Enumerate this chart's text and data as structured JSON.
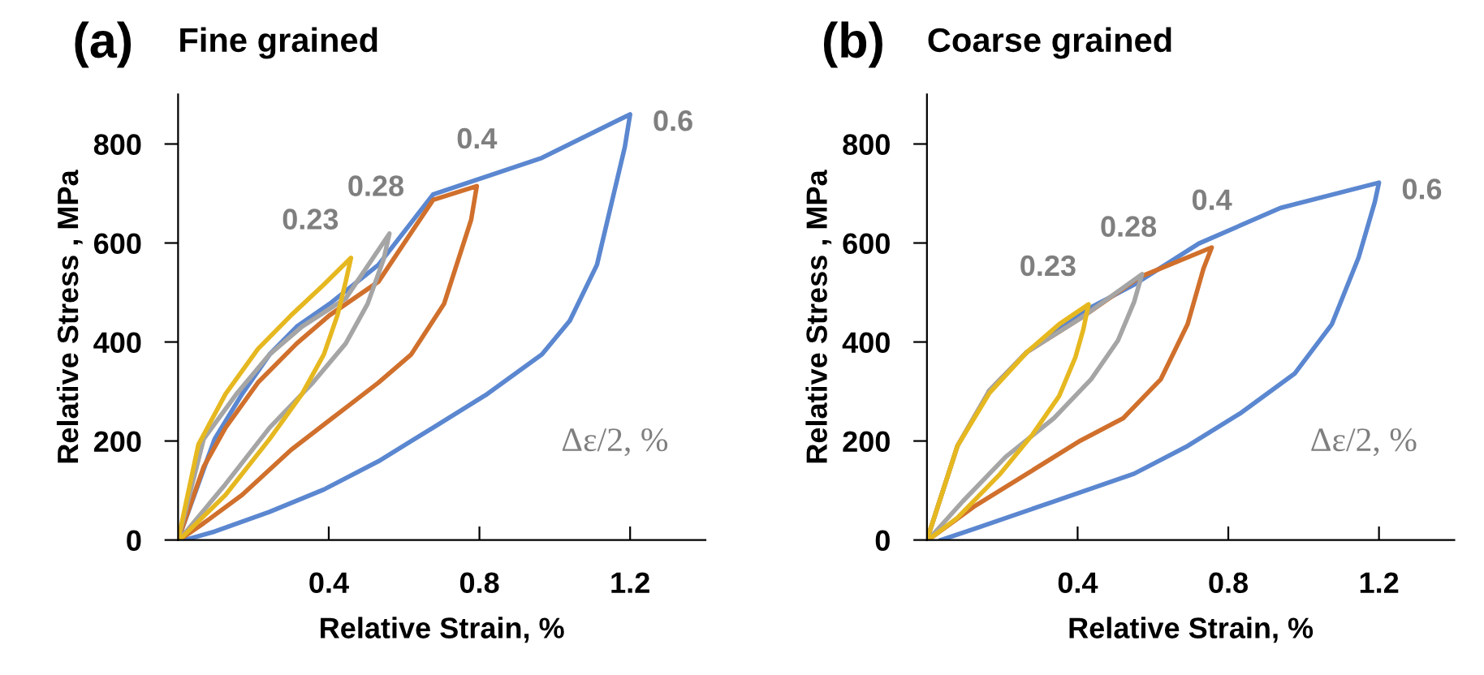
{
  "chart_data": [
    {
      "type": "line",
      "title": "(a)",
      "subtitle": "Fine grained",
      "xlabel": "Relative Strain, %",
      "ylabel": "Relative Stress , MPa",
      "xlim": [
        0,
        1.4
      ],
      "ylim": [
        0,
        900
      ],
      "xticks": [
        0.4,
        0.8,
        1.2
      ],
      "yticks": [
        0,
        200,
        400,
        600,
        800
      ],
      "grid": false,
      "legend": false,
      "marker": "none",
      "line_style": "solid",
      "annotations": [
        "Δε/2, %"
      ],
      "series": [
        {
          "name": "0.6",
          "color": "#5b87d0",
          "x": [
            0,
            0.097,
            0.17,
            0.243,
            0.315,
            0.402,
            0.532,
            0.677,
            0.966,
            1.2,
            1.186,
            1.112,
            1.04,
            0.966,
            0.821,
            0.677,
            0.532,
            0.387,
            0.243,
            0.097,
            0.017
          ],
          "values": [
            0,
            204,
            295,
            375,
            431,
            477,
            556,
            698,
            772,
            860,
            794,
            556,
            443,
            375,
            295,
            227,
            159,
            102,
            57,
            17,
            0
          ]
        },
        {
          "name": "0.4",
          "color": "#d0702c",
          "x": [
            0,
            0.068,
            0.126,
            0.212,
            0.315,
            0.402,
            0.532,
            0.677,
            0.793,
            0.778,
            0.706,
            0.619,
            0.532,
            0.416,
            0.3,
            0.17,
            0.068,
            0.003
          ],
          "values": [
            0,
            148,
            227,
            318,
            397,
            454,
            522,
            687,
            715,
            647,
            477,
            375,
            318,
            250,
            182,
            91,
            34,
            0
          ]
        },
        {
          "name": "0.28",
          "color": "#a5a5a5",
          "x": [
            0,
            0.068,
            0.155,
            0.243,
            0.329,
            0.445,
            0.561,
            0.546,
            0.503,
            0.445,
            0.358,
            0.243,
            0.126,
            0.003
          ],
          "values": [
            0,
            204,
            295,
            375,
            431,
            488,
            619,
            568,
            477,
            397,
            318,
            227,
            113,
            0
          ]
        },
        {
          "name": "0.23",
          "color": "#e6b820",
          "x": [
            0,
            0.054,
            0.126,
            0.212,
            0.3,
            0.387,
            0.459,
            0.445,
            0.423,
            0.387,
            0.329,
            0.243,
            0.126,
            0.003
          ],
          "values": [
            0,
            193,
            295,
            386,
            454,
            516,
            570,
            522,
            454,
            375,
            295,
            204,
            91,
            0
          ]
        }
      ]
    },
    {
      "type": "line",
      "title": "(b)",
      "subtitle": "Coarse grained",
      "xlabel": "Relative Strain, %",
      "ylabel": "Relative Stress , MPa",
      "xlim": [
        0,
        1.4
      ],
      "ylim": [
        0,
        900
      ],
      "xticks": [
        0.4,
        0.8,
        1.2
      ],
      "yticks": [
        0,
        200,
        400,
        600,
        800
      ],
      "grid": false,
      "legend": false,
      "marker": "none",
      "line_style": "solid",
      "annotations": [
        "Δε/2, %"
      ],
      "series": [
        {
          "name": "0.6",
          "color": "#5b87d0",
          "x": [
            0.166,
            0.266,
            0.408,
            0.548,
            0.722,
            0.939,
            1.2,
            1.189,
            1.146,
            1.075,
            0.976,
            0.834,
            0.692,
            0.55,
            0.337,
            0.124,
            0.038
          ],
          "values": [
            302,
            380,
            459,
            515,
            599,
            671,
            722,
            683,
            571,
            436,
            336,
            257,
            190,
            134,
            78,
            22,
            0
          ]
        },
        {
          "name": "0.4",
          "color": "#d0702c",
          "x": [
            0,
            0.081,
            0.166,
            0.266,
            0.408,
            0.564,
            0.756,
            0.734,
            0.692,
            0.621,
            0.521,
            0.408,
            0.266,
            0.124,
            0.003
          ],
          "values": [
            0,
            190,
            302,
            380,
            448,
            531,
            591,
            548,
            436,
            325,
            246,
            201,
            134,
            67,
            0
          ]
        },
        {
          "name": "0.28",
          "color": "#a5a5a5",
          "x": [
            0,
            0.081,
            0.166,
            0.266,
            0.408,
            0.571,
            0.55,
            0.507,
            0.436,
            0.337,
            0.209,
            0.095,
            0.003
          ],
          "values": [
            0,
            190,
            302,
            380,
            448,
            537,
            481,
            403,
            325,
            246,
            168,
            78,
            0
          ]
        },
        {
          "name": "0.23",
          "color": "#e6b820",
          "x": [
            0,
            0.081,
            0.166,
            0.266,
            0.351,
            0.429,
            0.415,
            0.394,
            0.351,
            0.28,
            0.195,
            0.081,
            0.003
          ],
          "values": [
            0,
            190,
            297,
            380,
            436,
            476,
            425,
            369,
            291,
            213,
            134,
            45,
            0
          ]
        }
      ]
    }
  ]
}
